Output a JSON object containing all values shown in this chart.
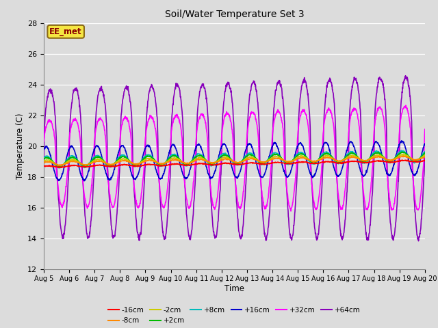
{
  "title": "Soil/Water Temperature Set 3",
  "xlabel": "Time",
  "ylabel": "Temperature (C)",
  "ylim": [
    12,
    28
  ],
  "xlim": [
    0,
    15
  ],
  "x_tick_labels": [
    "Aug 5",
    "Aug 6",
    "Aug 7",
    "Aug 8",
    "Aug 9",
    "Aug 10",
    "Aug 11",
    "Aug 12",
    "Aug 13",
    "Aug 14",
    "Aug 15",
    "Aug 16",
    "Aug 17",
    "Aug 18",
    "Aug 19",
    "Aug 20"
  ],
  "background_color": "#dcdcdc",
  "plot_bg_color": "#dcdcdc",
  "grid_color": "#c0c0c0",
  "series": {
    "-16cm": {
      "color": "#ff0000",
      "linewidth": 1.2,
      "zorder": 5
    },
    "-8cm": {
      "color": "#ff8800",
      "linewidth": 1.2,
      "zorder": 5
    },
    "-2cm": {
      "color": "#cccc00",
      "linewidth": 1.2,
      "zorder": 5
    },
    "+2cm": {
      "color": "#00bb00",
      "linewidth": 1.2,
      "zorder": 5
    },
    "+8cm": {
      "color": "#00bbbb",
      "linewidth": 1.2,
      "zorder": 5
    },
    "+16cm": {
      "color": "#0000cc",
      "linewidth": 1.2,
      "zorder": 5
    },
    "+32cm": {
      "color": "#ff00ff",
      "linewidth": 1.2,
      "zorder": 4
    },
    "+64cm": {
      "color": "#8800bb",
      "linewidth": 1.2,
      "zorder": 3
    }
  },
  "legend_label": "EE_met",
  "legend_bg": "#f5e642",
  "legend_border": "#8B6914"
}
